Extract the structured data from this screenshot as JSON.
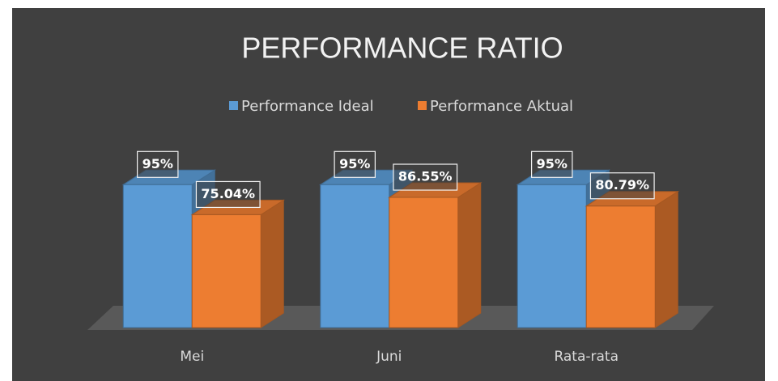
{
  "chart_data": {
    "type": "bar3d",
    "title": "PERFORMANCE RATIO",
    "categories": [
      "Mei",
      "Juni",
      "Rata-rata"
    ],
    "series": [
      {
        "name": "Performance Ideal",
        "color": "#5b9bd5",
        "values": [
          95,
          95,
          95
        ],
        "value_labels": [
          "95%",
          "95%",
          "95%"
        ]
      },
      {
        "name": "Performance Aktual",
        "color": "#ed7d31",
        "values": [
          75.04,
          86.55,
          80.79
        ],
        "value_labels": [
          "75.04%",
          "86.55%",
          "80.79%"
        ]
      }
    ],
    "ylim": [
      0,
      100
    ],
    "legend": "top"
  }
}
